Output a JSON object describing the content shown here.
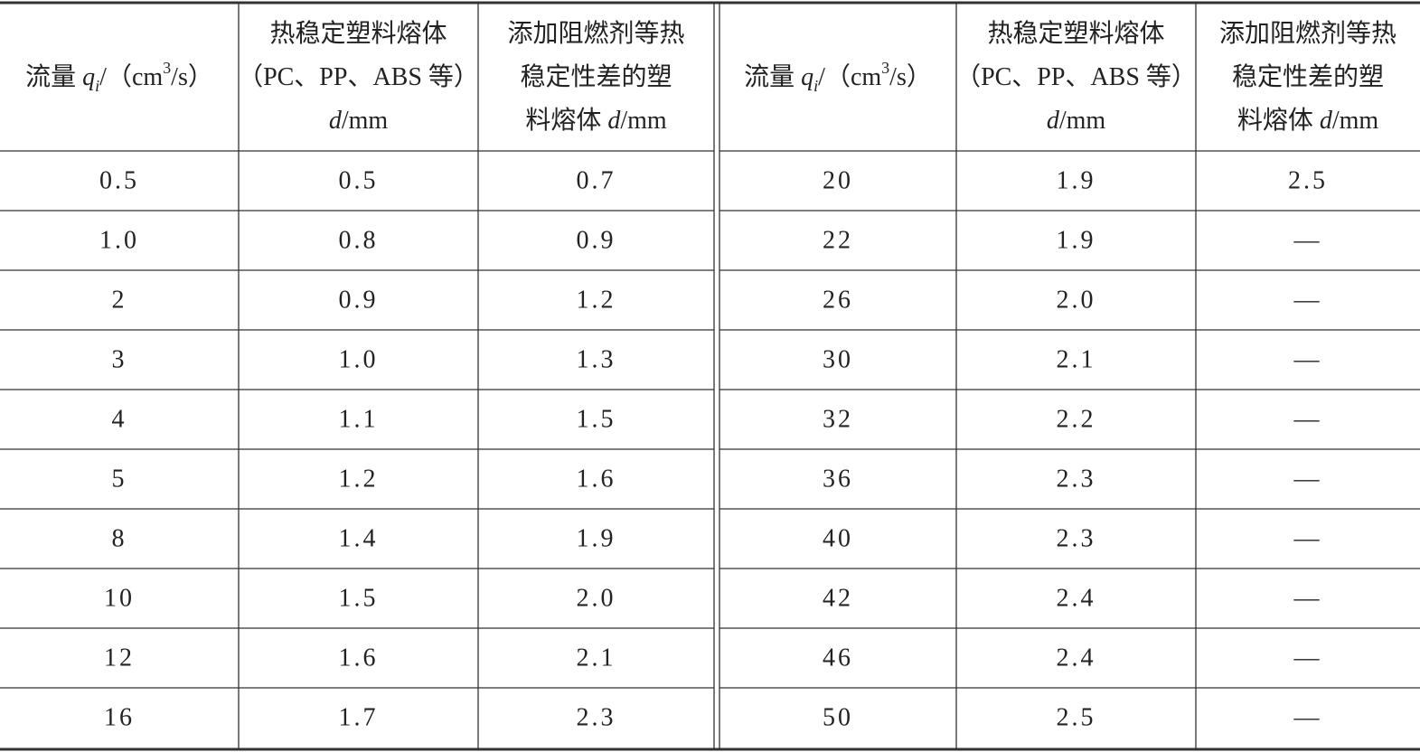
{
  "table": {
    "headers": [
      [
        [
          "流量 ",
          "q",
          "i",
          "/（cm",
          "3",
          "/s）"
        ]
      ],
      [
        [
          "热稳定塑料熔体"
        ],
        [
          "（PC、PP、ABS 等）"
        ],
        [
          "d",
          "/mm"
        ]
      ],
      [
        [
          "添加阻燃剂等热"
        ],
        [
          "稳定性差的塑"
        ],
        [
          "料熔体 ",
          "d",
          "/mm"
        ]
      ],
      [
        [
          "流量 ",
          "q",
          "i",
          "/（cm",
          "3",
          "/s）"
        ]
      ],
      [
        [
          "热稳定塑料熔体"
        ],
        [
          "（PC、PP、ABS 等）"
        ],
        [
          "d",
          "/mm"
        ]
      ],
      [
        [
          "添加阻燃剂等热"
        ],
        [
          "稳定性差的塑"
        ],
        [
          "料熔体 ",
          "d",
          "/mm"
        ]
      ]
    ],
    "rows": [
      [
        "0.5",
        "0.5",
        "0.7",
        "20",
        "1.9",
        "2.5"
      ],
      [
        "1.0",
        "0.8",
        "0.9",
        "22",
        "1.9",
        "—"
      ],
      [
        "2",
        "0.9",
        "1.2",
        "26",
        "2.0",
        "—"
      ],
      [
        "3",
        "1.0",
        "1.3",
        "30",
        "2.1",
        "—"
      ],
      [
        "4",
        "1.1",
        "1.5",
        "32",
        "2.2",
        "—"
      ],
      [
        "5",
        "1.2",
        "1.6",
        "36",
        "2.3",
        "—"
      ],
      [
        "8",
        "1.4",
        "1.9",
        "40",
        "2.3",
        "—"
      ],
      [
        "10",
        "1.5",
        "2.0",
        "42",
        "2.4",
        "—"
      ],
      [
        "12",
        "1.6",
        "2.1",
        "46",
        "2.4",
        "—"
      ],
      [
        "16",
        "1.7",
        "2.3",
        "50",
        "2.5",
        "—"
      ]
    ]
  }
}
